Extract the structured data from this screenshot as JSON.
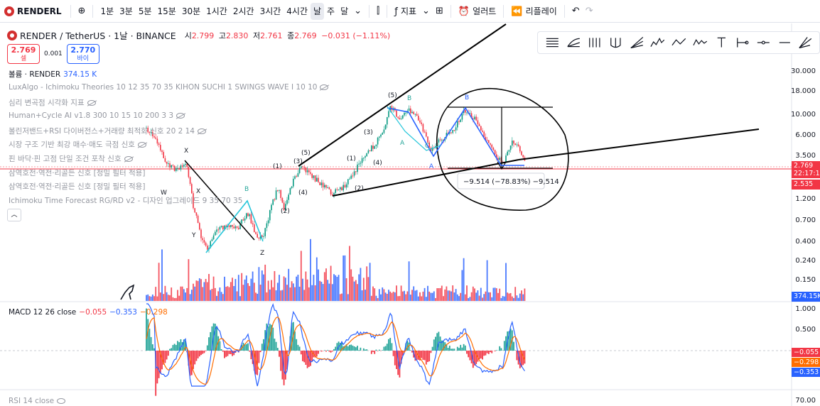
{
  "toolbar": {
    "symbol": "RENDERL",
    "intervals": [
      "1분",
      "3분",
      "5분",
      "15분",
      "30분",
      "1시간",
      "2시간",
      "3시간",
      "4시간",
      "날",
      "주",
      "달"
    ],
    "active_interval": "날",
    "indicators_label": "지표",
    "alert_label": "얼러트",
    "replay_label": "리플레이"
  },
  "legend": {
    "title": "RENDER / TetherUS · 1날 · BINANCE",
    "open_label": "시",
    "open": "2.799",
    "high_label": "고",
    "high": "2.830",
    "low_label": "저",
    "low": "2.761",
    "close_label": "종",
    "close": "2.769",
    "change": "−0.031 (−1.11%)",
    "sell_price": "2.769",
    "sell_label": "셀",
    "spread": "0.001",
    "buy_price": "2.770",
    "buy_label": "바이",
    "volume_label": "볼륨 · RENDER",
    "volume_value": "374.15 K",
    "indicators": [
      "LuxAlgo - Ichimoku Theories 10 12 35 70 35 KIHON SUCHI 1 SWINGS WAVE I 10 10",
      "심리 변곡점 시각화 지표",
      "Human+Cycle AI v1.8 300 10 15 10 200 3 3",
      "볼린저밴드+RSI 다이버전스+거래량 최적화 신호 20 2 14",
      "시장 구조 기반 최강 매수·매도 극점 신호",
      "핀 바닥·핀 고점 단일 조건 포착 신호",
      "삼역호전·역전·리골든 신호 [정밀 필터 적용]",
      "삼역호전·역전·리골든 신호 [정밀 필터 적용]",
      "Ichimoku Time Forecast RG/RD v2 - 디자인 업그레이드 9 35 70 35"
    ]
  },
  "price_axis": [
    "30.000",
    "18.000",
    "10.000",
    "6.000",
    "3.500",
    "1.200",
    "0.700",
    "0.400",
    "0.240",
    "0.150"
  ],
  "price_tags": {
    "current": "2.769",
    "countdown": "22:17:1",
    "line": "2.535",
    "volume": "374.15K"
  },
  "measure_label": "−9.514 (−78.83%) −9,514",
  "wave_labels": {
    "x1": "X",
    "w": "W",
    "x2": "X",
    "y": "Y",
    "z": "Z",
    "b1": "B",
    "b2": "B",
    "b3": "B",
    "a1": "A",
    "a2": "A",
    "c": "C",
    "p5a": "(5)",
    "p5b": "(5)",
    "p1a": "(1)",
    "p1b": "(1)",
    "p2a": "(2)",
    "p2b": "(2)",
    "p3a": "(3)",
    "p3b": "(3)",
    "p4a": "(4)",
    "p4b": "(4)"
  },
  "macd": {
    "label": "MACD 12 26 close",
    "hist": "−0.055",
    "macd": "−0.353",
    "signal": "−0.298",
    "axis": [
      "1.000",
      "0.500"
    ],
    "tags": [
      "−0.055",
      "−0.298",
      "−0.353"
    ]
  },
  "rsi": {
    "label": "RSI 14 close",
    "axis": "70.00"
  },
  "colors": {
    "up": "#089981",
    "down": "#f23645",
    "accent": "#2962ff",
    "macd_line": "#2962ff",
    "signal_line": "#ff6d00"
  }
}
